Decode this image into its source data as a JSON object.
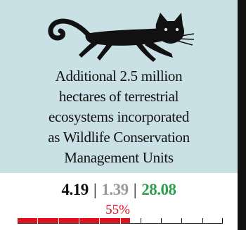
{
  "card": {
    "icon": "cat-icon",
    "description": "Additional 2.5 million\nhectares of terrestrial\necosystems  incorporated\nas Wildlife Conservation\nManagement Units",
    "stats": {
      "primary": "4.19",
      "secondary": "1.39",
      "tertiary": "28.08",
      "separator": "|"
    },
    "progress": {
      "percent": 55,
      "label": "55%",
      "tick_count": 10
    }
  },
  "colors": {
    "panel_bg": "#c9e1e4",
    "progress_fill": "#e0101e",
    "stat_secondary": "#9a9a9a",
    "stat_tertiary": "#2f9e52"
  }
}
